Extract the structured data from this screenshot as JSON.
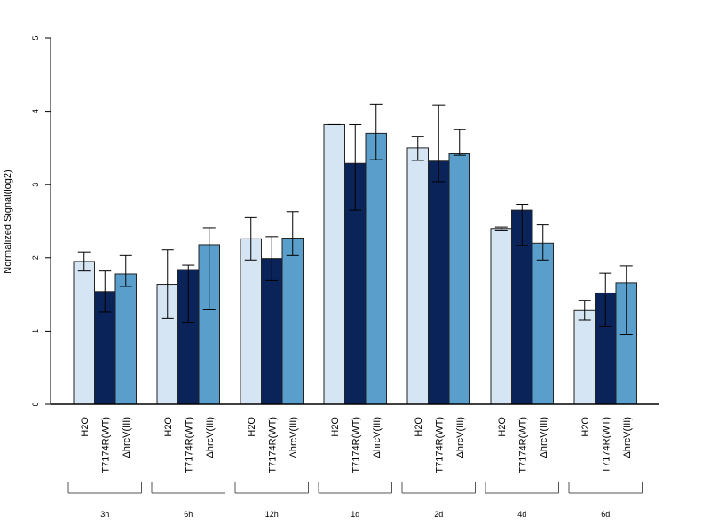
{
  "chart_data": {
    "type": "bar",
    "ylabel": "Normalized Signal(log2)",
    "ylim": [
      0,
      5
    ],
    "yticks": [
      "0",
      "1",
      "2",
      "3",
      "4",
      "5"
    ],
    "groups": [
      "3h",
      "6h",
      "12h",
      "1d",
      "2d",
      "4d",
      "6d"
    ],
    "bar_labels": [
      "H2O",
      "T7174R(WT)",
      "ΔhrcV(III)"
    ],
    "colors": [
      "#d6e5f4",
      "#0a2358",
      "#5a9fcc"
    ],
    "series": [
      {
        "values": [
          1.95,
          1.64,
          2.26,
          3.82,
          3.5,
          2.4,
          1.28
        ],
        "err_low": [
          1.82,
          1.17,
          1.97,
          3.82,
          3.33,
          2.38,
          1.15
        ],
        "err_high": [
          2.08,
          2.11,
          2.55,
          3.82,
          3.66,
          2.42,
          1.42
        ]
      },
      {
        "values": [
          1.54,
          1.84,
          1.99,
          3.29,
          3.32,
          2.65,
          1.52
        ],
        "err_low": [
          1.26,
          1.12,
          1.69,
          2.65,
          3.04,
          2.17,
          1.06
        ],
        "err_high": [
          1.82,
          1.9,
          2.29,
          3.82,
          4.09,
          2.73,
          1.79
        ]
      },
      {
        "values": [
          1.78,
          2.18,
          2.27,
          3.7,
          3.42,
          2.2,
          1.66
        ],
        "err_low": [
          1.61,
          1.29,
          2.03,
          3.34,
          3.4,
          1.97,
          0.95
        ],
        "err_high": [
          2.03,
          2.41,
          2.63,
          4.1,
          3.75,
          2.45,
          1.89
        ]
      }
    ]
  }
}
